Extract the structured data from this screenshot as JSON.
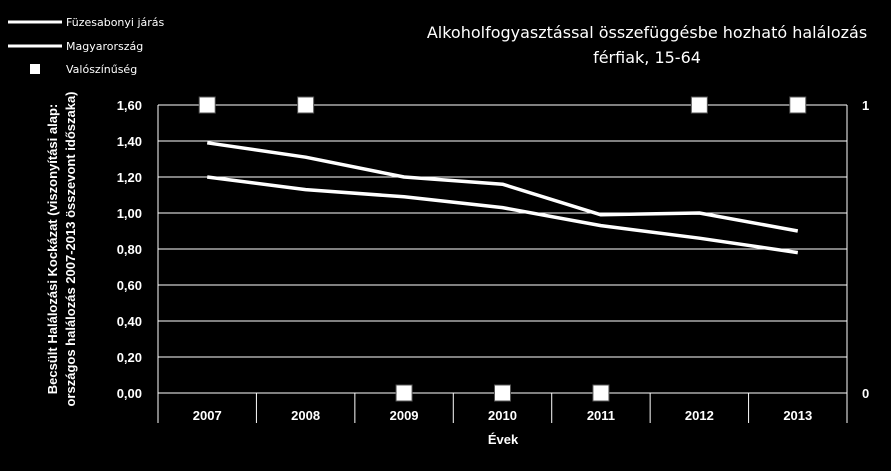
{
  "chart_data": {
    "type": "line",
    "title_lines": [
      "Alkoholfogyasztással összefüggésbe hozható halálozás",
      "férfiak, 15-64"
    ],
    "xlabel": "Évek",
    "ylabel_lines": [
      "Becsült Halálozási Kockázat (viszonyítási alap:",
      "országos halálozás 2007-2013 összevont időszaka)"
    ],
    "categories": [
      "2007",
      "2008",
      "2009",
      "2010",
      "2011",
      "2012",
      "2013"
    ],
    "ylim": [
      0,
      1.6
    ],
    "y_ticks": [
      "0,00",
      "0,20",
      "0,40",
      "0,60",
      "0,80",
      "1,00",
      "1,20",
      "1,40",
      "1,60"
    ],
    "y_tick_values": [
      0,
      0.2,
      0.4,
      0.6,
      0.8,
      1.0,
      1.2,
      1.4,
      1.6
    ],
    "y2lim": [
      0,
      1
    ],
    "y2_ticks": [
      "0",
      "1"
    ],
    "y2_tick_values": [
      0,
      1
    ],
    "legend_position": "top-left",
    "series": [
      {
        "name": "Füzesabonyi járás",
        "axis": "left",
        "style": "line",
        "values": [
          1.39,
          1.31,
          1.2,
          1.16,
          0.99,
          1.0,
          0.9
        ]
      },
      {
        "name": "Magyarország",
        "axis": "left",
        "style": "line",
        "values": [
          1.2,
          1.13,
          1.09,
          1.03,
          0.93,
          0.86,
          0.78
        ]
      },
      {
        "name": "Valószínűség",
        "axis": "right",
        "style": "marker",
        "values": [
          1,
          1,
          0,
          0,
          0,
          1,
          1
        ]
      }
    ],
    "colors": {
      "background": "#000000",
      "series": "#ffffff",
      "grid": "#ffffff"
    },
    "grid": true
  }
}
